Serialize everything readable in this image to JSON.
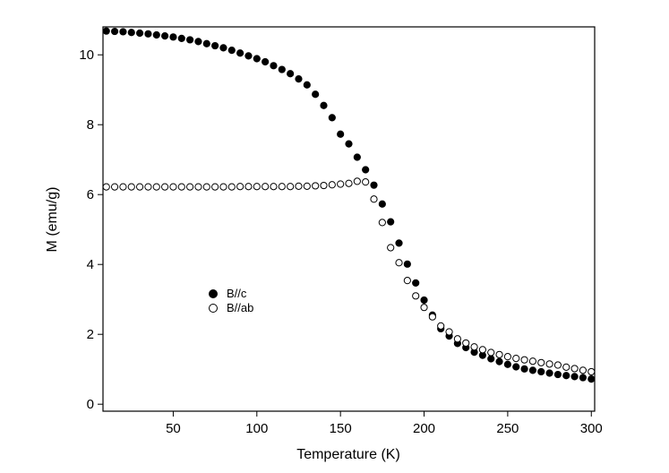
{
  "chart_data": {
    "type": "scatter",
    "xlabel": "Temperature (K)",
    "ylabel": "M (emu/g)",
    "xlim": [
      8,
      302
    ],
    "ylim": [
      -0.2,
      10.8
    ],
    "xticks": [
      50,
      100,
      150,
      200,
      250,
      300
    ],
    "xtick_labels": [
      "50",
      "100",
      "150",
      "200",
      "250",
      "300"
    ],
    "yticks": [
      0,
      2,
      4,
      6,
      8,
      10
    ],
    "ytick_labels": [
      "0",
      "2",
      "4",
      "6",
      "8",
      "10"
    ],
    "grid": false,
    "legend_position": "center-left",
    "series": [
      {
        "name": "B//c",
        "marker": "filled-circle",
        "color": "#000000",
        "x": [
          10,
          15,
          20,
          25,
          30,
          35,
          40,
          45,
          50,
          55,
          60,
          65,
          70,
          75,
          80,
          85,
          90,
          95,
          100,
          105,
          110,
          115,
          120,
          125,
          130,
          135,
          140,
          145,
          150,
          155,
          160,
          165,
          170,
          175,
          180,
          185,
          190,
          195,
          200,
          205,
          210,
          215,
          220,
          225,
          230,
          235,
          240,
          245,
          250,
          255,
          260,
          265,
          270,
          275,
          280,
          285,
          290,
          295,
          300
        ],
        "y": [
          10.68,
          10.67,
          10.66,
          10.64,
          10.62,
          10.6,
          10.57,
          10.54,
          10.51,
          10.47,
          10.43,
          10.38,
          10.32,
          10.26,
          10.2,
          10.13,
          10.05,
          9.97,
          9.89,
          9.8,
          9.69,
          9.58,
          9.46,
          9.31,
          9.14,
          8.87,
          8.55,
          8.2,
          7.73,
          7.45,
          7.07,
          6.71,
          6.27,
          5.73,
          5.22,
          4.61,
          4.01,
          3.47,
          2.98,
          2.55,
          2.16,
          1.95,
          1.74,
          1.62,
          1.49,
          1.4,
          1.3,
          1.22,
          1.14,
          1.07,
          1.01,
          0.97,
          0.93,
          0.89,
          0.85,
          0.82,
          0.79,
          0.76,
          0.72
        ]
      },
      {
        "name": "B//ab",
        "marker": "open-circle",
        "color": "#000000",
        "x": [
          10,
          15,
          20,
          25,
          30,
          35,
          40,
          45,
          50,
          55,
          60,
          65,
          70,
          75,
          80,
          85,
          90,
          95,
          100,
          105,
          110,
          115,
          120,
          125,
          130,
          135,
          140,
          145,
          150,
          155,
          160,
          165,
          170,
          175,
          180,
          185,
          190,
          195,
          200,
          205,
          210,
          215,
          220,
          225,
          230,
          235,
          240,
          245,
          250,
          255,
          260,
          265,
          270,
          275,
          280,
          285,
          290,
          295,
          300
        ],
        "y": [
          6.22,
          6.22,
          6.22,
          6.22,
          6.22,
          6.22,
          6.22,
          6.22,
          6.22,
          6.22,
          6.22,
          6.22,
          6.22,
          6.22,
          6.22,
          6.22,
          6.23,
          6.23,
          6.23,
          6.23,
          6.23,
          6.23,
          6.23,
          6.24,
          6.24,
          6.25,
          6.26,
          6.28,
          6.3,
          6.32,
          6.38,
          6.36,
          5.87,
          5.2,
          4.48,
          4.05,
          3.54,
          3.1,
          2.77,
          2.5,
          2.24,
          2.07,
          1.87,
          1.75,
          1.64,
          1.56,
          1.48,
          1.42,
          1.36,
          1.31,
          1.27,
          1.23,
          1.19,
          1.15,
          1.12,
          1.06,
          1.02,
          0.97,
          0.93
        ]
      }
    ]
  }
}
